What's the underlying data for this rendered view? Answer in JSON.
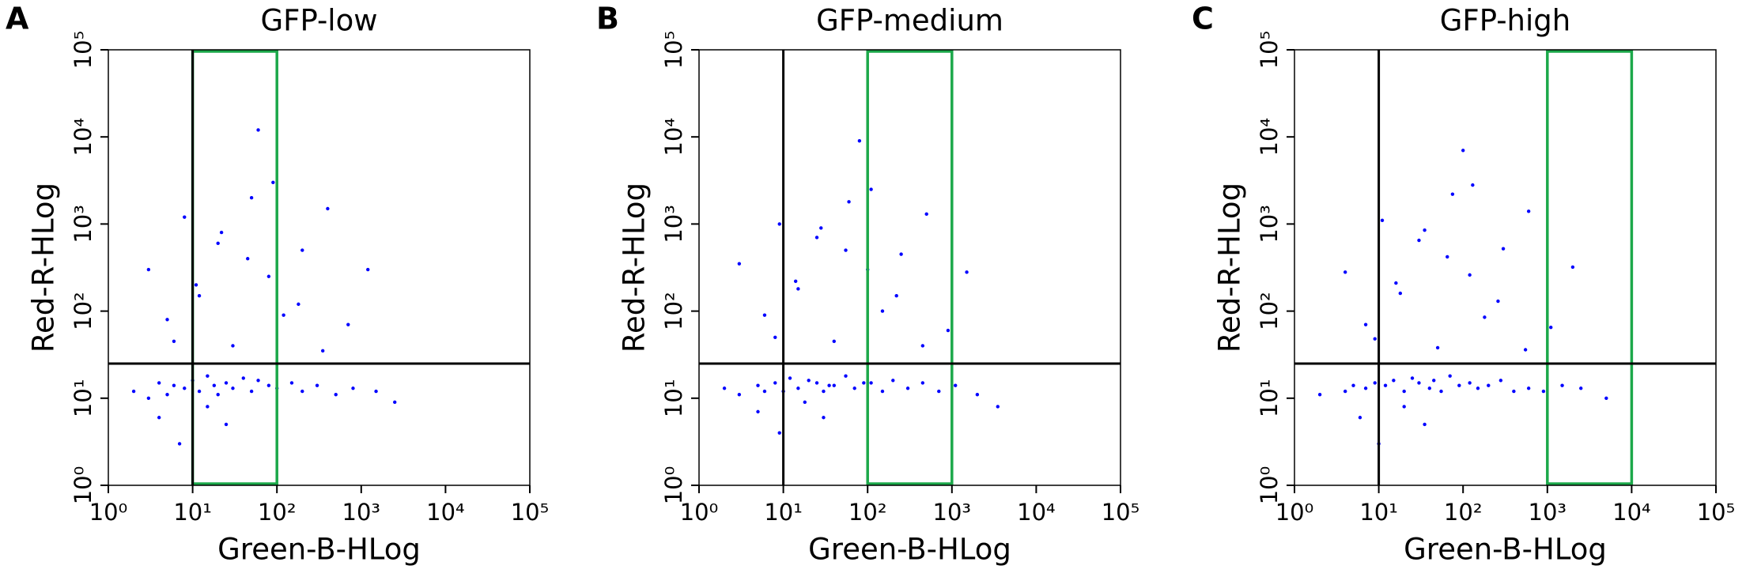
{
  "chart_data": [
    {
      "type": "scatter",
      "panel_label": "A",
      "title": "GFP-low",
      "x_label": "Green-B-HLog",
      "y_label": "Red-R-HLog",
      "log_scale": true,
      "xlim": [
        1,
        100000
      ],
      "ylim": [
        1,
        100000
      ],
      "xticks": [
        {
          "value": 1,
          "label": "10⁰"
        },
        {
          "value": 10,
          "label": "10¹"
        },
        {
          "value": 100,
          "label": "10²"
        },
        {
          "value": 1000,
          "label": "10³"
        },
        {
          "value": 10000,
          "label": "10⁴"
        },
        {
          "value": 100000,
          "label": "10⁵"
        }
      ],
      "yticks": [
        {
          "value": 1,
          "label": "10⁰"
        },
        {
          "value": 10,
          "label": "10¹"
        },
        {
          "value": 100,
          "label": "10²"
        },
        {
          "value": 1000,
          "label": "10³"
        },
        {
          "value": 10000,
          "label": "10⁴"
        },
        {
          "value": 100000,
          "label": "10⁵"
        }
      ],
      "threshold_x": 10,
      "threshold_y": 25,
      "gate": {
        "x": [
          10,
          100
        ],
        "color": "#1ca84a"
      },
      "series": [
        {
          "color": "#0000ff",
          "x": [
            2,
            3,
            4,
            5,
            6,
            8,
            10,
            12,
            15,
            18,
            20,
            25,
            30,
            40,
            50,
            60,
            80,
            100,
            150,
            200,
            300,
            500,
            800,
            1500,
            3,
            5,
            8,
            12,
            20,
            30,
            50,
            80,
            120,
            200,
            400,
            700,
            1200,
            4,
            7,
            15,
            25,
            45,
            90,
            180,
            350,
            6,
            11,
            22,
            60,
            2500
          ],
          "values": [
            12,
            10,
            15,
            11,
            14,
            13,
            16,
            12,
            18,
            14,
            11,
            15,
            13,
            17,
            12,
            16,
            14,
            13,
            15,
            12,
            14,
            11,
            13,
            12,
            300,
            80,
            1200,
            150,
            600,
            40,
            2000,
            250,
            90,
            500,
            1500,
            70,
            300,
            6,
            3,
            8,
            5,
            400,
            3000,
            120,
            35,
            45,
            200,
            800,
            12000,
            9
          ]
        }
      ]
    },
    {
      "type": "scatter",
      "panel_label": "B",
      "title": "GFP-medium",
      "x_label": "Green-B-HLog",
      "y_label": "Red-R-HLog",
      "log_scale": true,
      "xlim": [
        1,
        100000
      ],
      "ylim": [
        1,
        100000
      ],
      "xticks": [
        {
          "value": 1,
          "label": "10⁰"
        },
        {
          "value": 10,
          "label": "10¹"
        },
        {
          "value": 100,
          "label": "10²"
        },
        {
          "value": 1000,
          "label": "10³"
        },
        {
          "value": 10000,
          "label": "10⁴"
        },
        {
          "value": 100000,
          "label": "10⁵"
        }
      ],
      "yticks": [
        {
          "value": 1,
          "label": "10⁰"
        },
        {
          "value": 10,
          "label": "10¹"
        },
        {
          "value": 100,
          "label": "10²"
        },
        {
          "value": 1000,
          "label": "10³"
        },
        {
          "value": 10000,
          "label": "10⁴"
        },
        {
          "value": 100000,
          "label": "10⁵"
        }
      ],
      "threshold_x": 10,
      "threshold_y": 25,
      "gate": {
        "x": [
          100,
          1000
        ],
        "color": "#1ca84a"
      },
      "series": [
        {
          "color": "#0000ff",
          "x": [
            2,
            3,
            5,
            6,
            8,
            10,
            12,
            15,
            20,
            25,
            30,
            35,
            40,
            55,
            70,
            90,
            110,
            150,
            200,
            300,
            450,
            700,
            1100,
            2000,
            3,
            6,
            9,
            15,
            25,
            40,
            60,
            100,
            150,
            250,
            500,
            900,
            1500,
            5,
            9,
            18,
            30,
            55,
            110,
            220,
            450,
            8,
            14,
            28,
            80,
            3500
          ],
          "values": [
            13,
            11,
            14,
            12,
            15,
            12,
            17,
            13,
            16,
            15,
            12,
            14,
            14,
            18,
            13,
            15,
            15,
            12,
            16,
            13,
            15,
            12,
            14,
            11,
            350,
            90,
            1000,
            180,
            700,
            45,
            1800,
            300,
            100,
            450,
            1300,
            60,
            280,
            7,
            4,
            9,
            6,
            500,
            2500,
            150,
            40,
            50,
            220,
            900,
            9000,
            8
          ]
        }
      ]
    },
    {
      "type": "scatter",
      "panel_label": "C",
      "title": "GFP-high",
      "x_label": "Green-B-HLog",
      "y_label": "Red-R-HLog",
      "log_scale": true,
      "xlim": [
        1,
        100000
      ],
      "ylim": [
        1,
        100000
      ],
      "xticks": [
        {
          "value": 1,
          "label": "10⁰"
        },
        {
          "value": 10,
          "label": "10¹"
        },
        {
          "value": 100,
          "label": "10²"
        },
        {
          "value": 1000,
          "label": "10³"
        },
        {
          "value": 10000,
          "label": "10⁴"
        },
        {
          "value": 100000,
          "label": "10⁵"
        }
      ],
      "yticks": [
        {
          "value": 1,
          "label": "10⁰"
        },
        {
          "value": 10,
          "label": "10¹"
        },
        {
          "value": 100,
          "label": "10²"
        },
        {
          "value": 1000,
          "label": "10³"
        },
        {
          "value": 10000,
          "label": "10⁴"
        },
        {
          "value": 100000,
          "label": "10⁵"
        }
      ],
      "threshold_x": 10,
      "threshold_y": 25,
      "gate": {
        "x": [
          1000,
          10000
        ],
        "color": "#1ca84a"
      },
      "series": [
        {
          "color": "#0000ff",
          "x": [
            2,
            4,
            5,
            7,
            9,
            12,
            15,
            20,
            25,
            30,
            40,
            45,
            55,
            70,
            90,
            120,
            150,
            200,
            280,
            400,
            600,
            900,
            1500,
            2500,
            4,
            7,
            11,
            18,
            30,
            50,
            75,
            120,
            180,
            300,
            600,
            1100,
            2000,
            6,
            10,
            20,
            35,
            65,
            130,
            260,
            550,
            9,
            16,
            35,
            100,
            5000
          ],
          "values": [
            11,
            12,
            14,
            13,
            15,
            14,
            16,
            12,
            17,
            15,
            13,
            16,
            12,
            18,
            14,
            15,
            13,
            14,
            16,
            12,
            13,
            12,
            14,
            13,
            280,
            70,
            1100,
            160,
            650,
            38,
            2200,
            260,
            85,
            520,
            1400,
            65,
            320,
            6,
            3,
            8,
            5,
            420,
            2800,
            130,
            36,
            48,
            210,
            850,
            7000,
            10
          ]
        }
      ]
    }
  ]
}
